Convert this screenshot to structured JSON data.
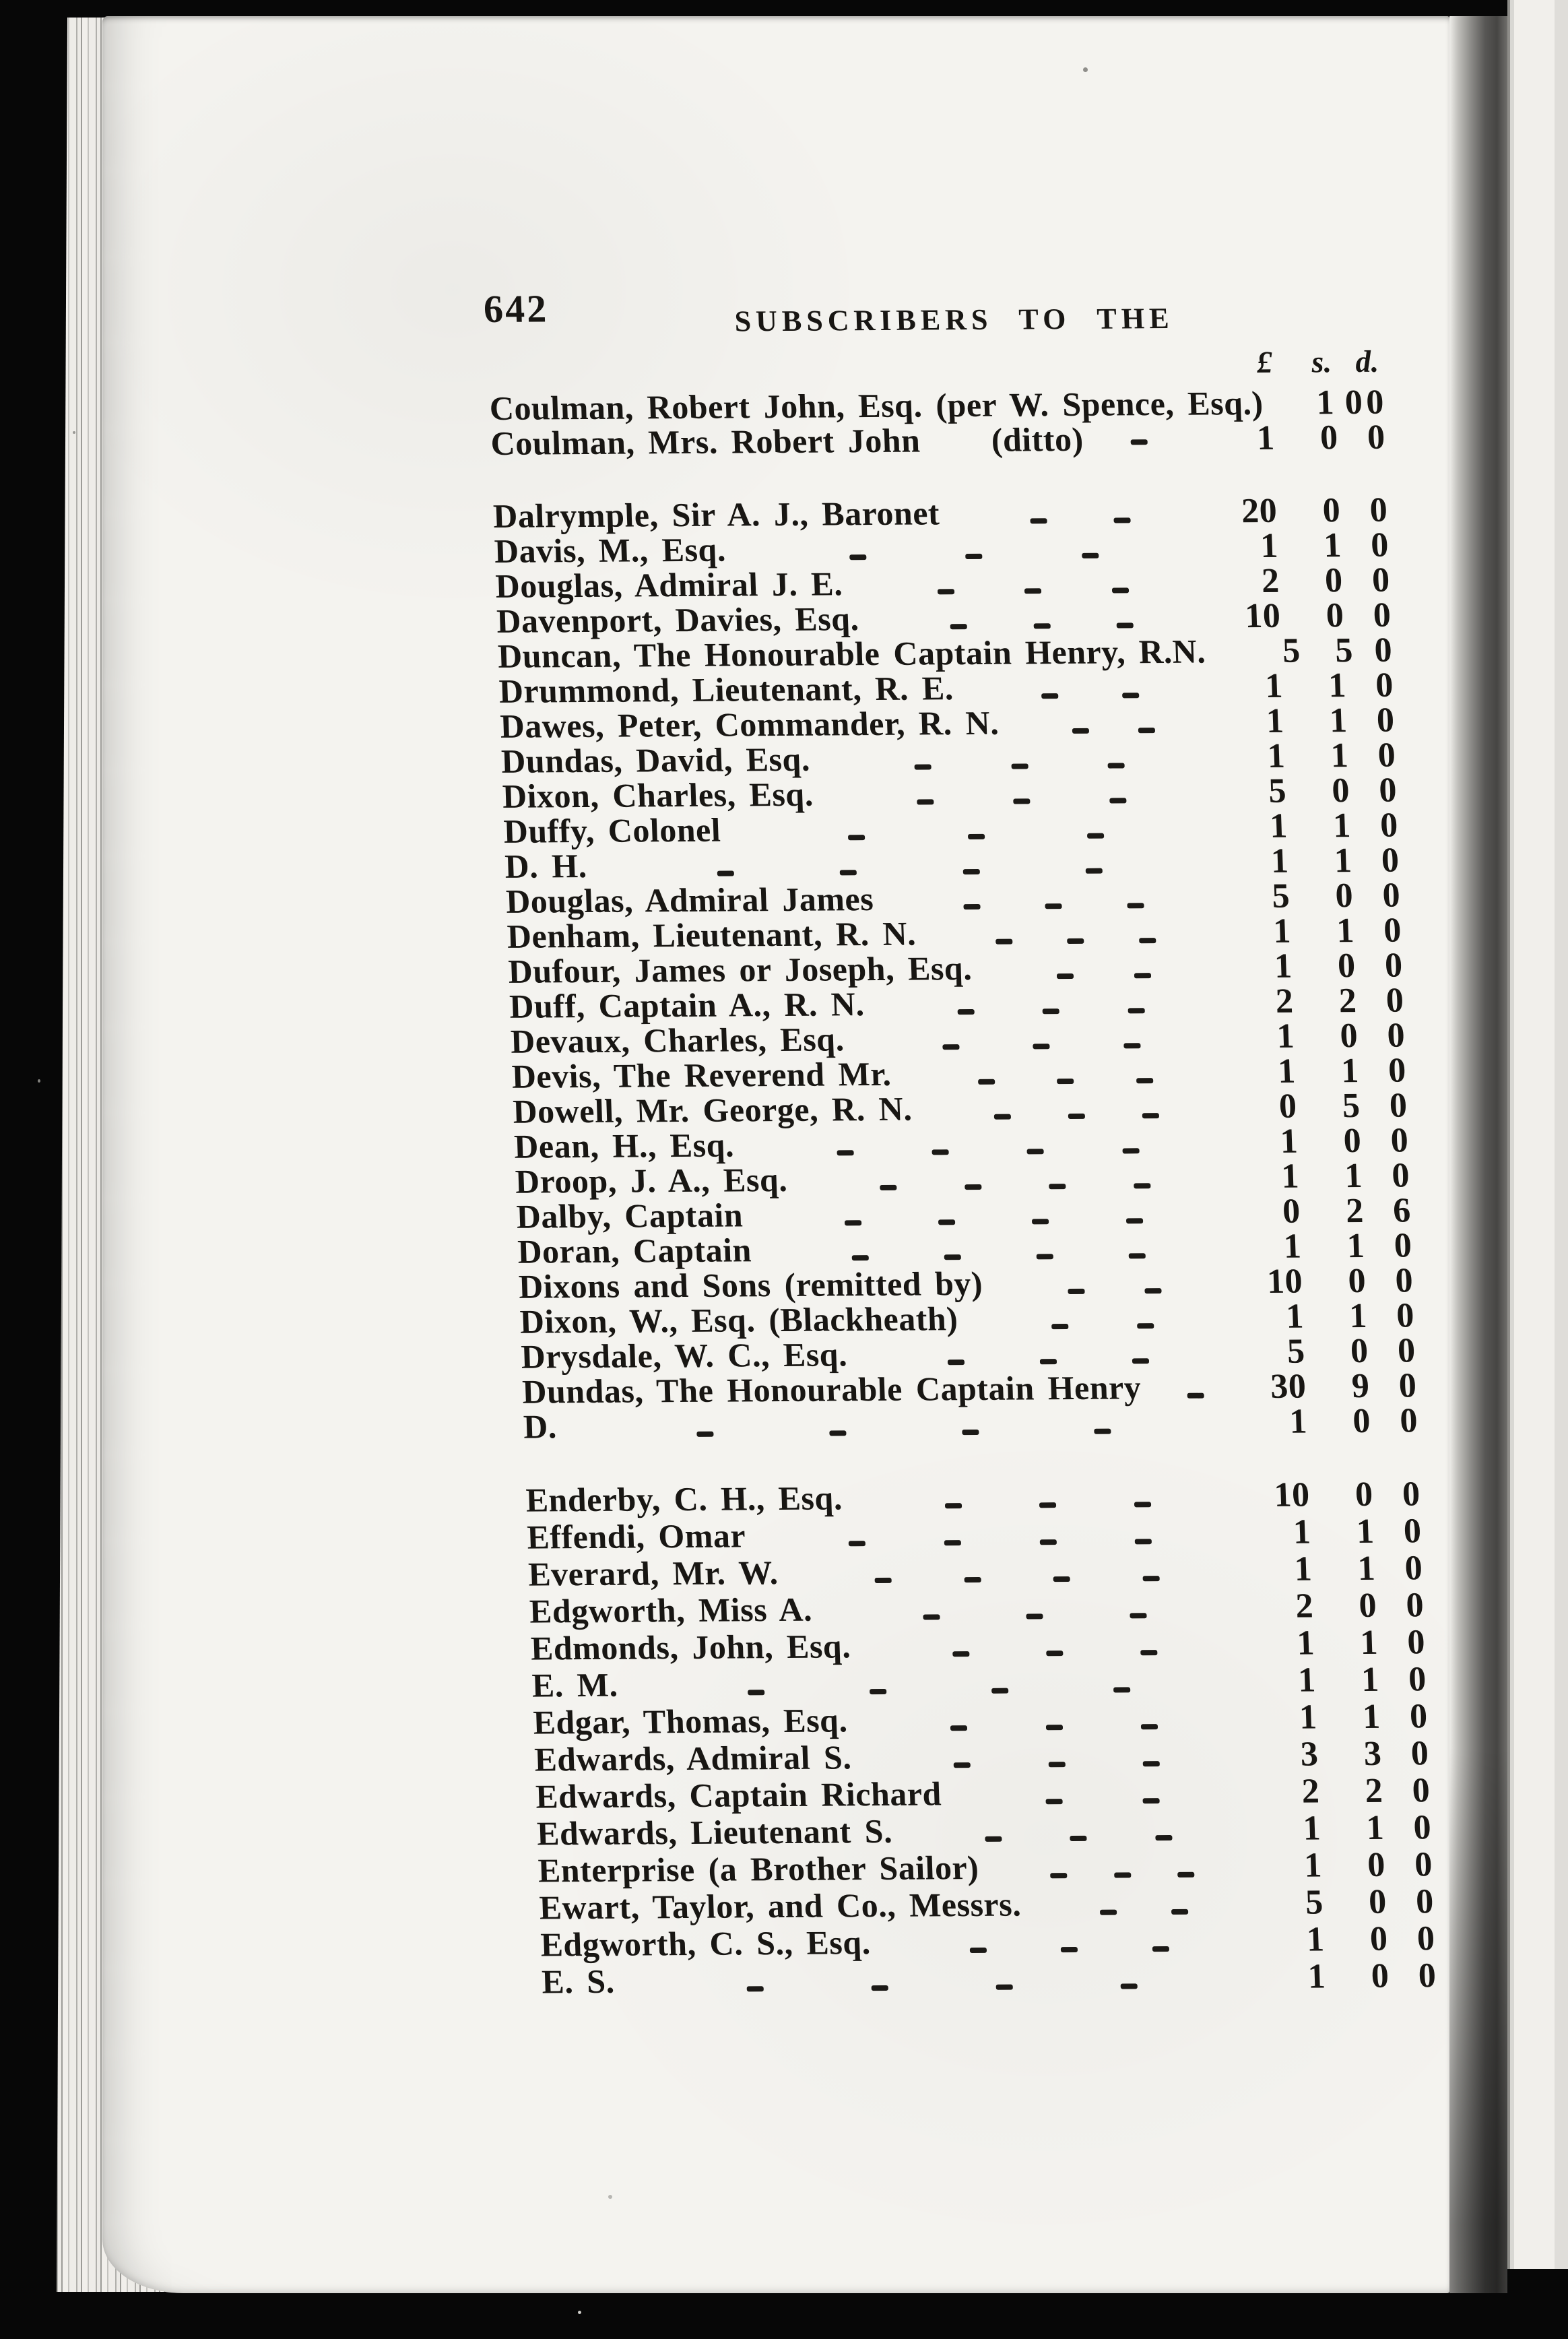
{
  "colors": {
    "background": "#070707",
    "paper": "#f4f3ef",
    "ink": "#181613"
  },
  "scan": {
    "page_number": "642",
    "running_title": "SUBSCRIBERS TO THE",
    "currency_headers": {
      "pounds": "£",
      "shillings": "s.",
      "pence": "d."
    },
    "dash": "-",
    "groups": [
      {
        "rows": [
          {
            "name": "Coulman, Robert John, Esq. (per W. Spence, Esq.)",
            "dashes": 0,
            "pounds": "1",
            "shillings": "0",
            "pence": "0"
          },
          {
            "name": "Coulman, Mrs. Robert John",
            "mid": "(ditto)",
            "dashes": 1,
            "pounds": "1",
            "shillings": "0",
            "pence": "0"
          }
        ]
      },
      {
        "rows": [
          {
            "name": "Dalrymple, Sir A. J., Baronet",
            "dashes": 2,
            "pounds": "20",
            "shillings": "0",
            "pence": "0"
          },
          {
            "name": "Davis, M., Esq.",
            "dashes": 3,
            "pounds": "1",
            "shillings": "1",
            "pence": "0"
          },
          {
            "name": "Douglas, Admiral J. E.",
            "dashes": 3,
            "pounds": "2",
            "shillings": "0",
            "pence": "0"
          },
          {
            "name": "Davenport, Davies, Esq.",
            "dashes": 3,
            "pounds": "10",
            "shillings": "0",
            "pence": "0"
          },
          {
            "name": "Duncan, The Honourable Captain Henry, R.N.",
            "dashes": 0,
            "pounds": "5",
            "shillings": "5",
            "pence": "0"
          },
          {
            "name": "Drummond, Lieutenant, R. E.",
            "dashes": 2,
            "pounds": "1",
            "shillings": "1",
            "pence": "0"
          },
          {
            "name": "Dawes, Peter, Commander, R. N.",
            "dashes": 2,
            "pounds": "1",
            "shillings": "1",
            "pence": "0"
          },
          {
            "name": "Dundas, David, Esq.",
            "dashes": 3,
            "pounds": "1",
            "shillings": "1",
            "pence": "0"
          },
          {
            "name": "Dixon, Charles, Esq.",
            "dashes": 3,
            "pounds": "5",
            "shillings": "0",
            "pence": "0"
          },
          {
            "name": "Duffy, Colonel",
            "dashes": 3,
            "pounds": "1",
            "shillings": "1",
            "pence": "0"
          },
          {
            "name": "D. H.",
            "dashes": 4,
            "pounds": "1",
            "shillings": "1",
            "pence": "0"
          },
          {
            "name": "Douglas, Admiral James",
            "dashes": 3,
            "pounds": "5",
            "shillings": "0",
            "pence": "0"
          },
          {
            "name": "Denham, Lieutenant, R. N.",
            "dashes": 3,
            "pounds": "1",
            "shillings": "1",
            "pence": "0"
          },
          {
            "name": "Dufour, James or Joseph, Esq.",
            "dashes": 2,
            "pounds": "1",
            "shillings": "0",
            "pence": "0"
          },
          {
            "name": "Duff, Captain A., R. N.",
            "dashes": 3,
            "pounds": "2",
            "shillings": "2",
            "pence": "0"
          },
          {
            "name": "Devaux, Charles, Esq.",
            "dashes": 3,
            "pounds": "1",
            "shillings": "0",
            "pence": "0"
          },
          {
            "name": "Devis, The Reverend Mr.",
            "dashes": 3,
            "pounds": "1",
            "shillings": "1",
            "pence": "0"
          },
          {
            "name": "Dowell, Mr. George, R. N.",
            "dashes": 3,
            "pounds": "0",
            "shillings": "5",
            "pence": "0"
          },
          {
            "name": "Dean, H., Esq.",
            "dashes": 4,
            "pounds": "1",
            "shillings": "0",
            "pence": "0"
          },
          {
            "name": "Droop, J. A., Esq.",
            "dashes": 4,
            "pounds": "1",
            "shillings": "1",
            "pence": "0"
          },
          {
            "name": "Dalby, Captain",
            "dashes": 4,
            "pounds": "0",
            "shillings": "2",
            "pence": "6"
          },
          {
            "name": "Doran, Captain",
            "dashes": 4,
            "pounds": "1",
            "shillings": "1",
            "pence": "0"
          },
          {
            "name": "Dixons and Sons (remitted by)",
            "dashes": 2,
            "pounds": "10",
            "shillings": "0",
            "pence": "0"
          },
          {
            "name": "Dixon, W., Esq. (Blackheath)",
            "dashes": 2,
            "pounds": "1",
            "shillings": "1",
            "pence": "0"
          },
          {
            "name": "Drysdale, W. C., Esq.",
            "dashes": 3,
            "pounds": "5",
            "shillings": "0",
            "pence": "0"
          },
          {
            "name": "Dundas, The Honourable Captain Henry",
            "dashes": 1,
            "pounds": "30",
            "shillings": "9",
            "pence": "0"
          },
          {
            "name": "D.",
            "dashes": 4,
            "pounds": "1",
            "shillings": "0",
            "pence": "0"
          }
        ]
      },
      {
        "rows": [
          {
            "name": "Enderby, C. H., Esq.",
            "dashes": 3,
            "pounds": "10",
            "shillings": "0",
            "pence": "0"
          },
          {
            "name": "Effendi, Omar",
            "dashes": 4,
            "pounds": "1",
            "shillings": "1",
            "pence": "0"
          },
          {
            "name": "Everard, Mr. W.",
            "dashes": 4,
            "pounds": "1",
            "shillings": "1",
            "pence": "0"
          },
          {
            "name": "Edgworth, Miss A.",
            "dashes": 3,
            "pounds": "2",
            "shillings": "0",
            "pence": "0"
          },
          {
            "name": "Edmonds, John, Esq.",
            "dashes": 3,
            "pounds": "1",
            "shillings": "1",
            "pence": "0"
          },
          {
            "name": "E. M.",
            "dashes": 4,
            "pounds": "1",
            "shillings": "1",
            "pence": "0"
          },
          {
            "name": "Edgar, Thomas, Esq.",
            "dashes": 3,
            "pounds": "1",
            "shillings": "1",
            "pence": "0"
          },
          {
            "name": "Edwards, Admiral S.",
            "dashes": 3,
            "pounds": "3",
            "shillings": "3",
            "pence": "0"
          },
          {
            "name": "Edwards, Captain Richard",
            "dashes": 2,
            "pounds": "2",
            "shillings": "2",
            "pence": "0"
          },
          {
            "name": "Edwards, Lieutenant S.",
            "dashes": 3,
            "pounds": "1",
            "shillings": "1",
            "pence": "0"
          },
          {
            "name": "Enterprise (a Brother Sailor)",
            "dashes": 3,
            "pounds": "1",
            "shillings": "0",
            "pence": "0"
          },
          {
            "name": "Ewart, Taylor, and Co., Messrs.",
            "dashes": 2,
            "pounds": "5",
            "shillings": "0",
            "pence": "0"
          },
          {
            "name": "Edgworth, C. S., Esq.",
            "dashes": 3,
            "pounds": "1",
            "shillings": "0",
            "pence": "0"
          },
          {
            "name": "E. S.",
            "dashes": 4,
            "pounds": "1",
            "shillings": "0",
            "pence": "0"
          }
        ]
      }
    ]
  }
}
